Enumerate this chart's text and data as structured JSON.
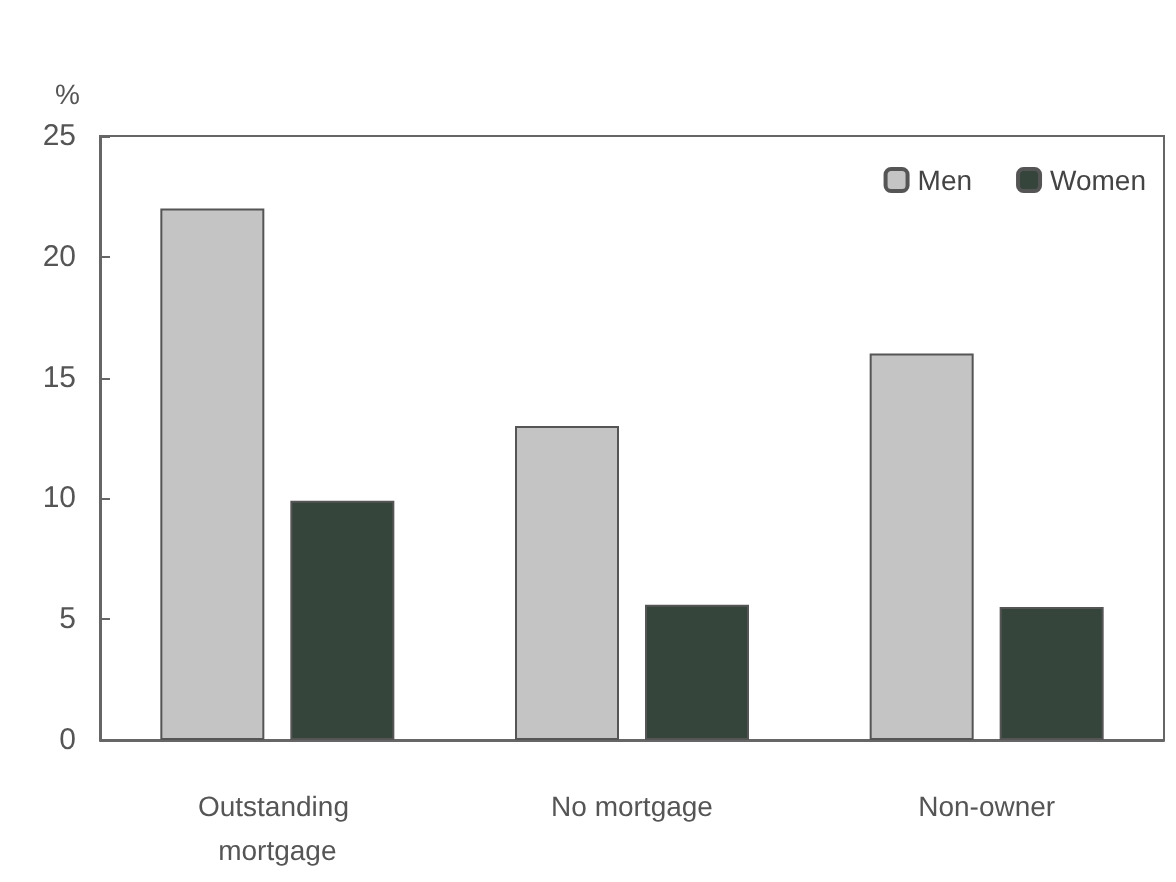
{
  "chart_data": {
    "type": "bar",
    "ylabel": "%",
    "categories": [
      "Outstanding mortgage",
      "No mortgage",
      "Non-owner"
    ],
    "series": [
      {
        "name": "Men",
        "color": "#c4c4c4",
        "values": [
          22,
          13,
          16
        ]
      },
      {
        "name": "Women",
        "color": "#36453c",
        "values": [
          9.9,
          5.6,
          5.5
        ]
      }
    ],
    "ylim": [
      0,
      25
    ],
    "yticks": [
      0,
      5,
      10,
      15,
      20,
      25
    ],
    "grid": false,
    "legend": "top right"
  }
}
